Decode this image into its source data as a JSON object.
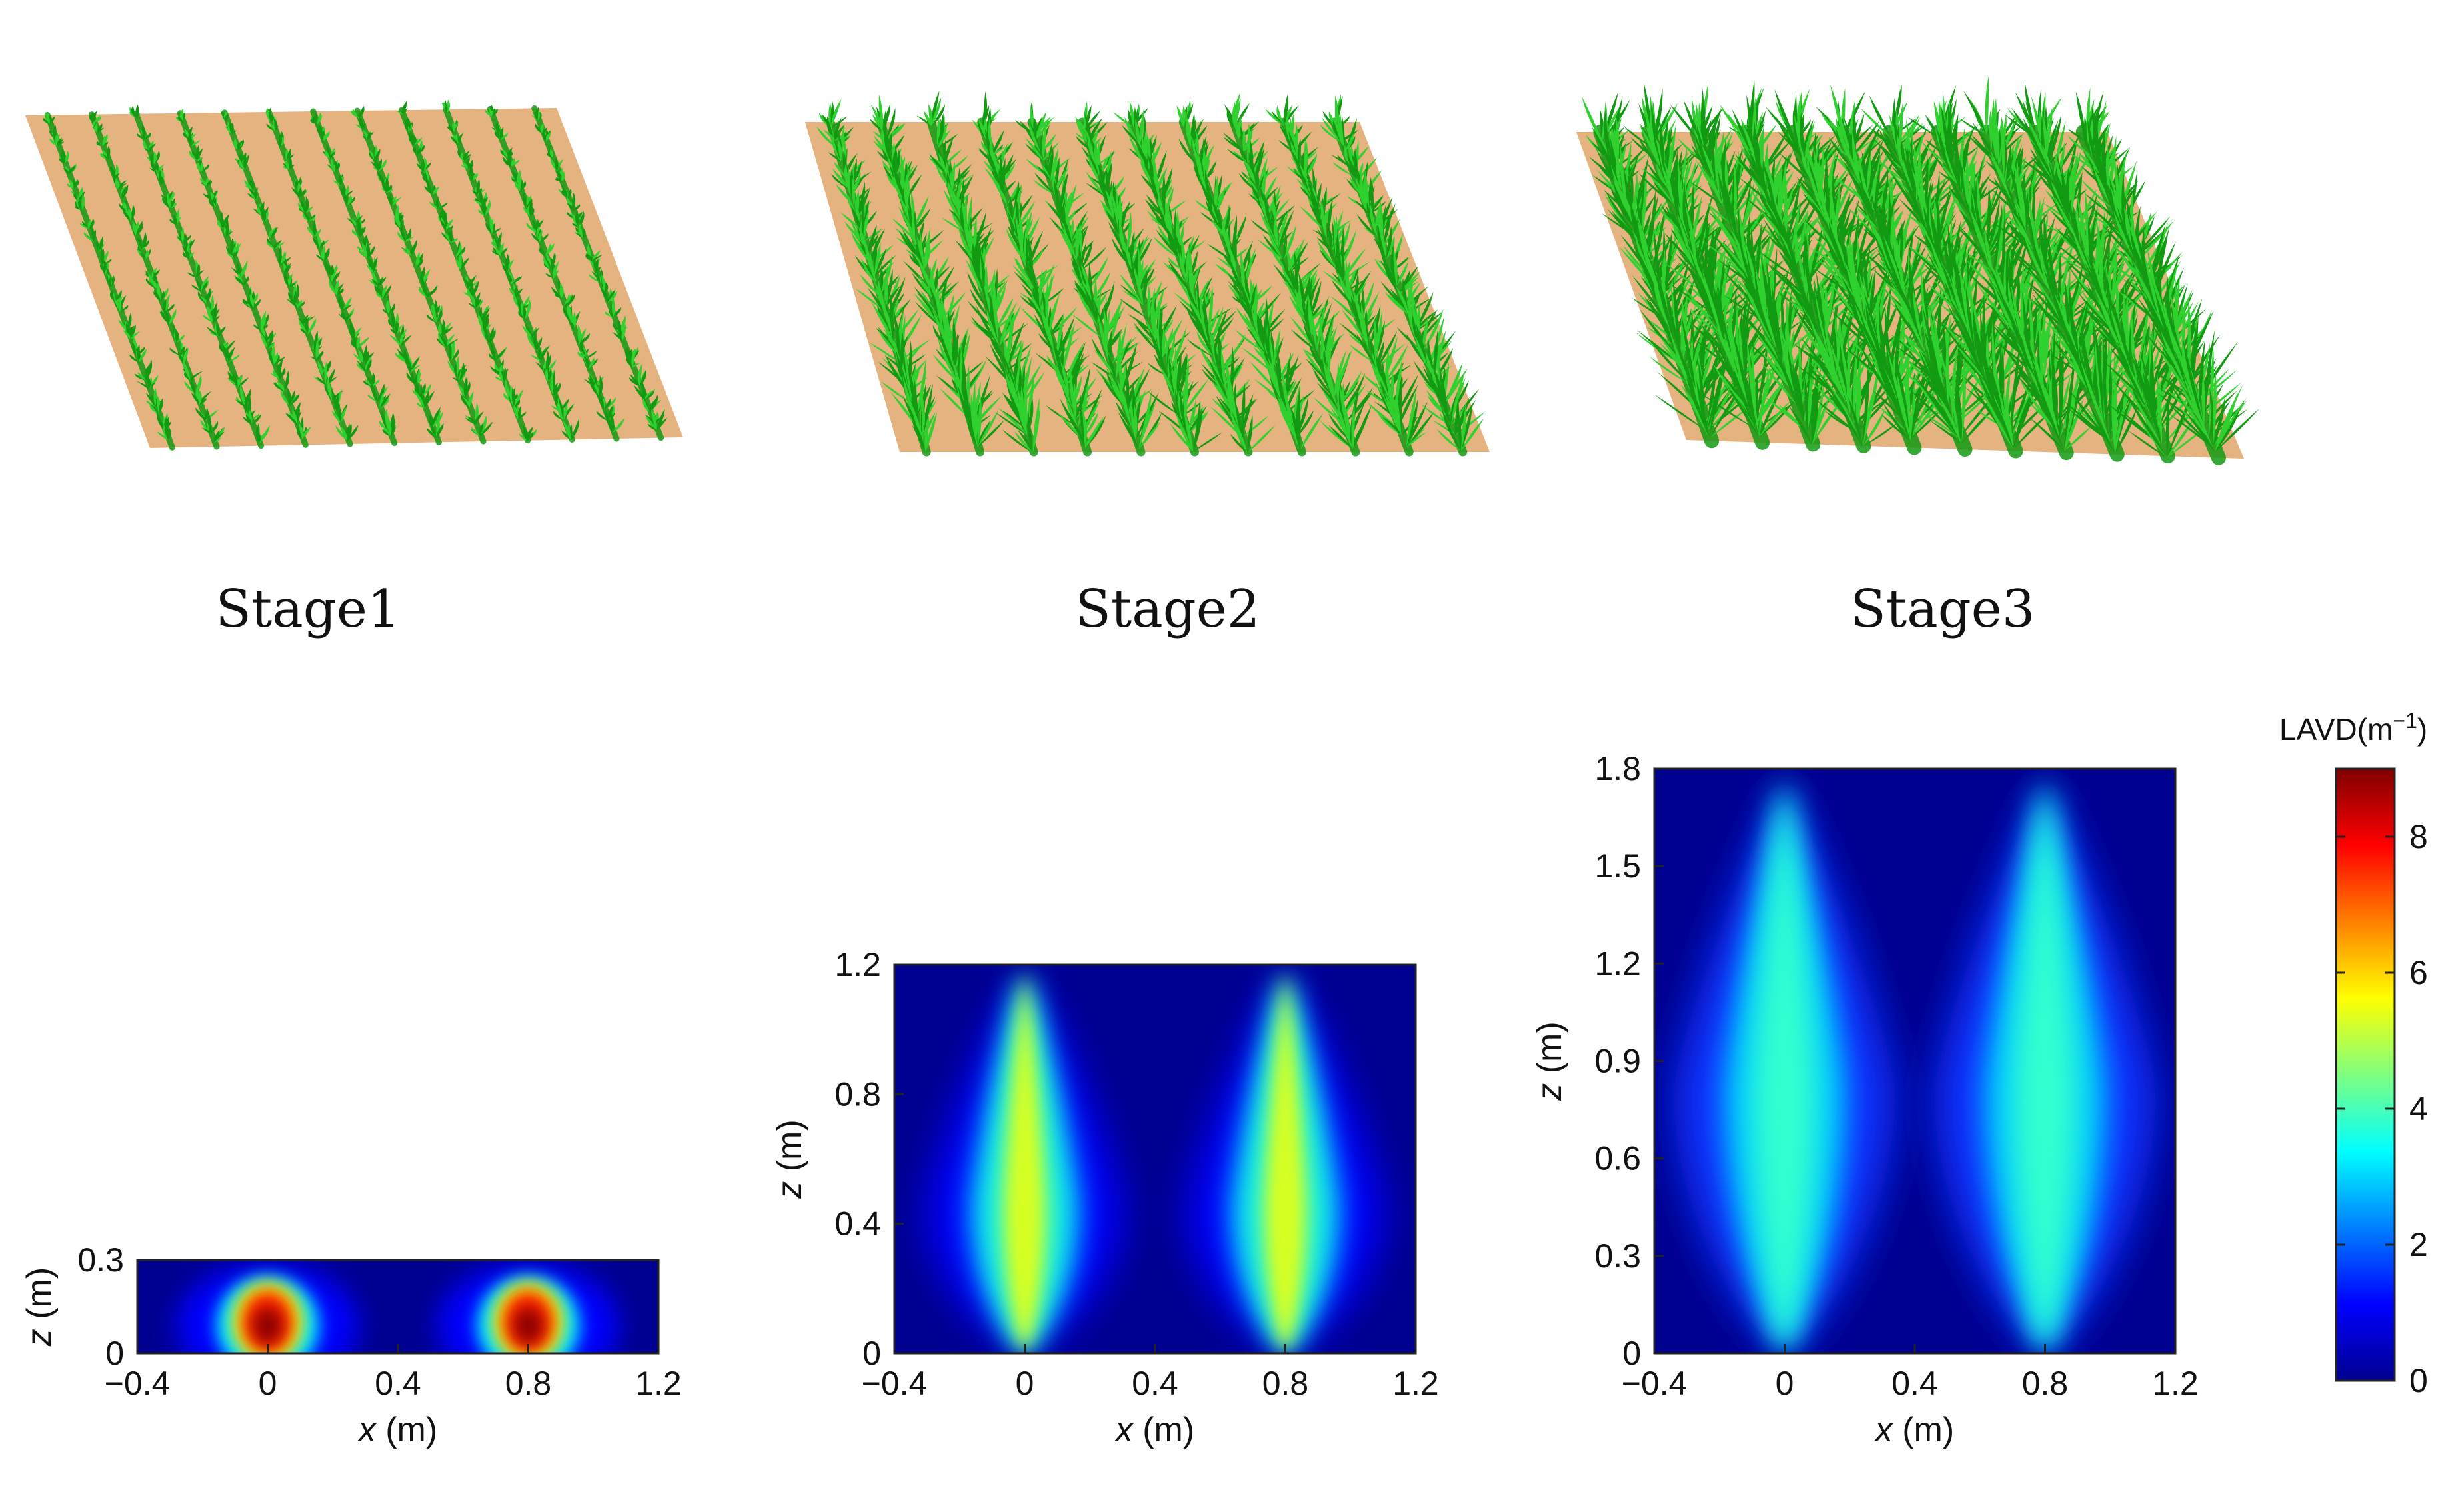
{
  "figure": {
    "panels": [
      {
        "label": "Stage1",
        "canopy": "sparse"
      },
      {
        "label": "Stage2",
        "canopy": "medium"
      },
      {
        "label": "Stage3",
        "canopy": "dense"
      }
    ]
  },
  "colors": {
    "soil": "#e5b37f",
    "leaf_dark": "#129a12",
    "leaf_light": "#2fd12f",
    "frame": "#222222"
  },
  "chart_data": [
    {
      "type": "heatmap",
      "title": "Stage1",
      "xlabel": "x (m)",
      "ylabel": "z (m)",
      "xlim": [
        -0.4,
        1.2
      ],
      "ylim": [
        0,
        0.3
      ],
      "xticks": [
        -0.4,
        0,
        0.4,
        0.8,
        1.2
      ],
      "xtick_labels": [
        "−0.4",
        "0",
        "0.4",
        "0.8",
        "1.2"
      ],
      "yticks": [
        0,
        0.3
      ],
      "ytick_labels": [
        "0",
        "0.3"
      ],
      "plant_rows_x": [
        0,
        0.8
      ],
      "canopy_height": 0.3,
      "peak_z": 0.1,
      "peak_lavd": 9
    },
    {
      "type": "heatmap",
      "title": "Stage2",
      "xlabel": "x (m)",
      "ylabel": "z (m)",
      "xlim": [
        -0.4,
        1.2
      ],
      "ylim": [
        0,
        1.2
      ],
      "xticks": [
        -0.4,
        0,
        0.4,
        0.8,
        1.2
      ],
      "xtick_labels": [
        "−0.4",
        "0",
        "0.4",
        "0.8",
        "1.2"
      ],
      "yticks": [
        0,
        0.4,
        0.8,
        1.2
      ],
      "ytick_labels": [
        "0",
        "0.4",
        "0.8",
        "1.2"
      ],
      "plant_rows_x": [
        0,
        0.8
      ],
      "canopy_height": 1.2,
      "peak_z": 0.45,
      "peak_lavd": 5.5
    },
    {
      "type": "heatmap",
      "title": "Stage3",
      "xlabel": "x (m)",
      "ylabel": "z (m)",
      "xlim": [
        -0.4,
        1.2
      ],
      "ylim": [
        0,
        1.8
      ],
      "xticks": [
        -0.4,
        0,
        0.4,
        0.8,
        1.2
      ],
      "xtick_labels": [
        "−0.4",
        "0",
        "0.4",
        "0.8",
        "1.2"
      ],
      "yticks": [
        0,
        0.3,
        0.6,
        0.9,
        1.2,
        1.5,
        1.8
      ],
      "ytick_labels": [
        "0",
        "0.3",
        "0.6",
        "0.9",
        "1.2",
        "1.5",
        "1.8"
      ],
      "plant_rows_x": [
        0,
        0.8
      ],
      "canopy_height": 1.8,
      "peak_z": 0.8,
      "peak_lavd": 4.3
    }
  ],
  "colorbar": {
    "title_prefix": "LAVD(m",
    "title_exp": "−1",
    "title_suffix": ")",
    "range": [
      0,
      9
    ],
    "ticks": [
      0,
      2,
      4,
      6,
      8
    ],
    "colormap": "jet"
  }
}
